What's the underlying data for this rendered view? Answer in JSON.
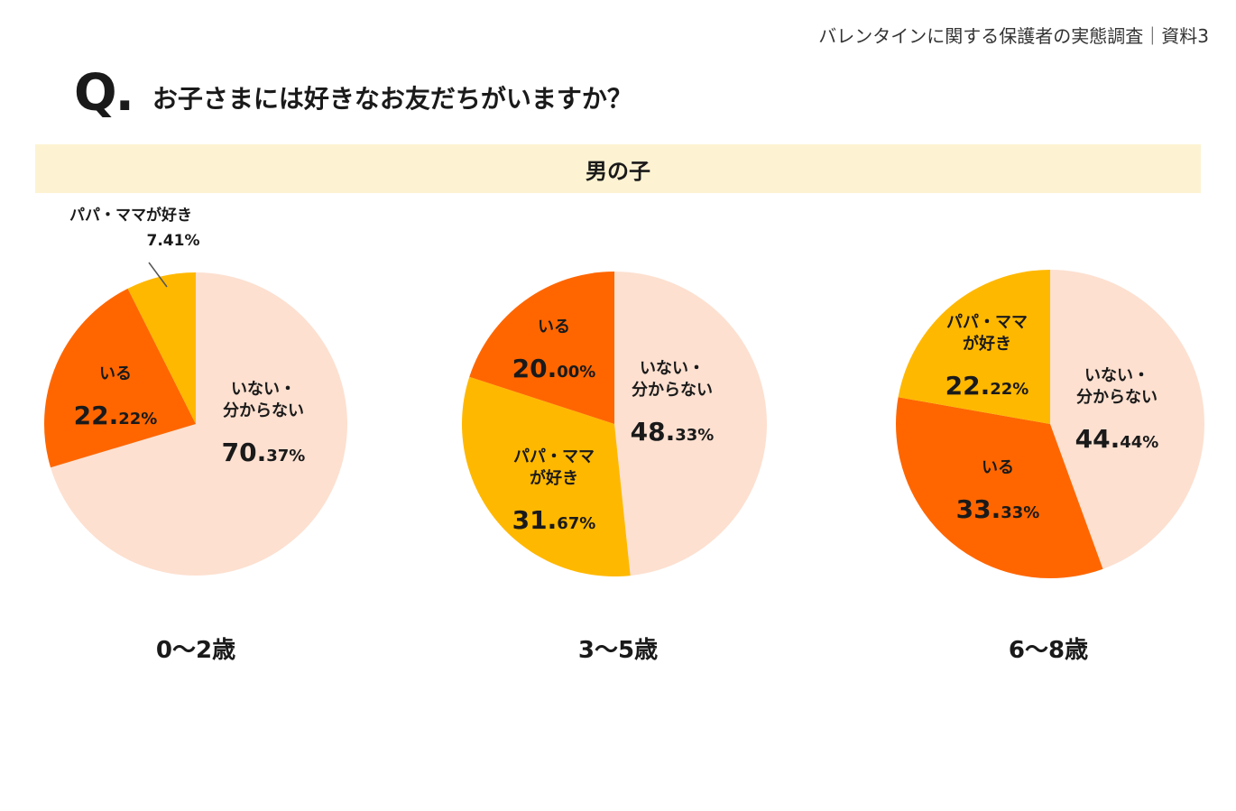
{
  "header": {
    "doc_ref": "バレンタインに関する保護者の実態調査｜資料3",
    "q_mark": "Q.",
    "question": "お子さまには好きなお友だちがいますか？"
  },
  "section_label": "男の子",
  "colors": {
    "none": "#fde0d0",
    "yes": "#ff6600",
    "parents": "#ffb800",
    "band": "#fdf3d2"
  },
  "chart_data": [
    {
      "type": "pie",
      "title": "0〜2歳",
      "slices": [
        {
          "key": "none",
          "label_lines": [
            "いない・",
            "分からない"
          ],
          "value": 70.37,
          "int": "70.",
          "dec": "37%"
        },
        {
          "key": "yes",
          "label_lines": [
            "いる"
          ],
          "value": 22.22,
          "int": "22.",
          "dec": "22%"
        },
        {
          "key": "parents",
          "label_lines": [
            "パパ・ママが好き"
          ],
          "value": 7.41,
          "value_text": "7.41%"
        }
      ]
    },
    {
      "type": "pie",
      "title": "3〜5歳",
      "slices": [
        {
          "key": "none",
          "label_lines": [
            "いない・",
            "分からない"
          ],
          "value": 48.33,
          "int": "48.",
          "dec": "33%"
        },
        {
          "key": "parents",
          "label_lines": [
            "パパ・ママ",
            "が好き"
          ],
          "value": 31.67,
          "int": "31.",
          "dec": "67%"
        },
        {
          "key": "yes",
          "label_lines": [
            "いる"
          ],
          "value": 20.0,
          "int": "20.",
          "dec": "00%"
        }
      ]
    },
    {
      "type": "pie",
      "title": "6〜8歳",
      "slices": [
        {
          "key": "none",
          "label_lines": [
            "いない・",
            "分からない"
          ],
          "value": 44.44,
          "int": "44.",
          "dec": "44%"
        },
        {
          "key": "yes",
          "label_lines": [
            "いる"
          ],
          "value": 33.33,
          "int": "33.",
          "dec": "33%"
        },
        {
          "key": "parents",
          "label_lines": [
            "パパ・ママ",
            "が好き"
          ],
          "value": 22.22,
          "int": "22.",
          "dec": "22%"
        }
      ]
    }
  ]
}
